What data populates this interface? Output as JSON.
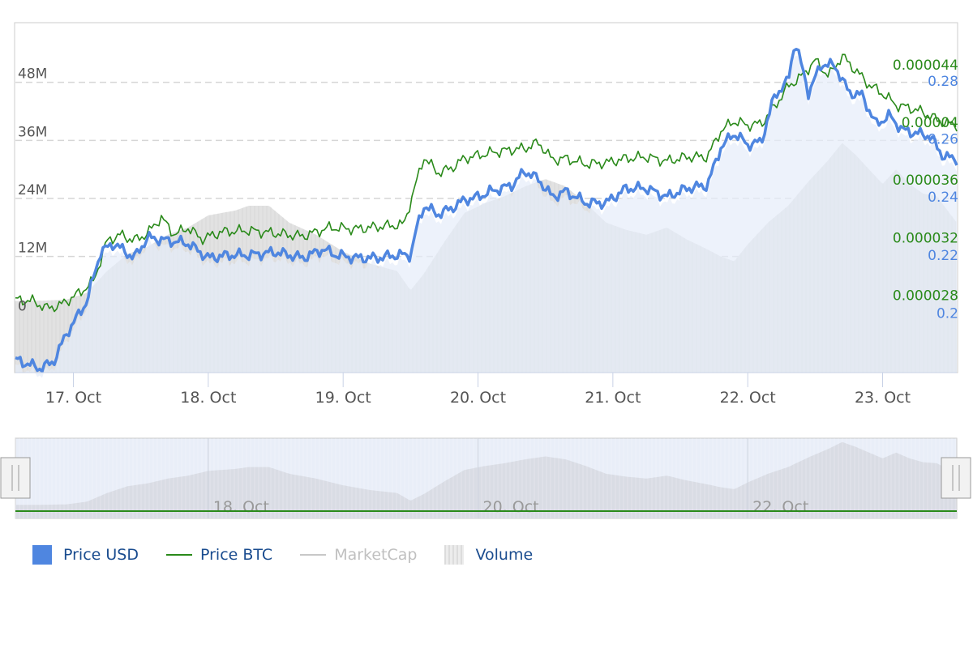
{
  "colors": {
    "price_usd": "#4f86e0",
    "price_btc": "#2a8a1a",
    "marketcap": "#c8c8c8",
    "volume": "#e2e2e2",
    "marketcap_area": "#e6edf9",
    "left_axis_text": "#555555",
    "usd_axis_text": "#4f86e0",
    "btc_axis_text": "#2a8a1a",
    "legend_text": "#1a4c8f",
    "legend_hidden_text": "#c0c0c0"
  },
  "chart_data": {
    "type": "line",
    "x_labels": [
      "17. Oct",
      "18. Oct",
      "19. Oct",
      "20. Oct",
      "21. Oct",
      "22. Oct",
      "23. Oct"
    ],
    "x_range": [
      16.57,
      23.55
    ],
    "axes": {
      "volume": {
        "ticks": [
          "0",
          "12M",
          "24M",
          "36M",
          "48M"
        ],
        "values": [
          0,
          12000000,
          24000000,
          36000000,
          48000000
        ],
        "range": [
          -12000000,
          60000000
        ]
      },
      "price_usd": {
        "ticks": [
          "0.2",
          "0.22",
          "0.24",
          "0.26",
          "0.28"
        ],
        "values": [
          0.2,
          0.22,
          0.24,
          0.26,
          0.28
        ],
        "range": [
          0.1795,
          0.2995
        ]
      },
      "price_btc": {
        "ticks": [
          "0.000028",
          "0.000032",
          "0.000036",
          "0.00004",
          "0.000044"
        ],
        "values": [
          2.8e-05,
          3.2e-05,
          3.6e-05,
          4e-05,
          4.4e-05
        ],
        "range": [
          2.264e-05,
          4.68e-05
        ]
      }
    },
    "grid": true,
    "legend_position": "bottom-left",
    "series": [
      {
        "name": "Price USD",
        "axis": "price_usd",
        "x": [
          16.57,
          16.75,
          16.85,
          16.95,
          17.1,
          17.2,
          17.3,
          17.45,
          17.55,
          17.7,
          17.85,
          18.0,
          18.15,
          18.3,
          18.5,
          18.7,
          18.85,
          18.95,
          19.1,
          19.25,
          19.4,
          19.5,
          19.55,
          19.6,
          19.7,
          19.8,
          19.9,
          20.0,
          20.1,
          20.25,
          20.35,
          20.45,
          20.55,
          20.65,
          20.8,
          20.95,
          21.1,
          21.25,
          21.4,
          21.55,
          21.7,
          21.8,
          21.9,
          22.0,
          22.1,
          22.2,
          22.3,
          22.35,
          22.45,
          22.55,
          22.65,
          22.75,
          22.85,
          22.95,
          23.05,
          23.15,
          23.25,
          23.35,
          23.45,
          23.55
        ],
        "values": [
          0.184,
          0.181,
          0.183,
          0.193,
          0.204,
          0.221,
          0.224,
          0.219,
          0.226,
          0.225,
          0.224,
          0.219,
          0.22,
          0.22,
          0.221,
          0.219,
          0.222,
          0.22,
          0.219,
          0.219,
          0.22,
          0.22,
          0.23,
          0.237,
          0.234,
          0.236,
          0.239,
          0.24,
          0.242,
          0.244,
          0.249,
          0.246,
          0.24,
          0.242,
          0.238,
          0.238,
          0.243,
          0.243,
          0.24,
          0.243,
          0.244,
          0.257,
          0.262,
          0.258,
          0.259,
          0.275,
          0.28,
          0.294,
          0.276,
          0.286,
          0.285,
          0.276,
          0.275,
          0.265,
          0.268,
          0.263,
          0.262,
          0.261,
          0.254,
          0.253
        ]
      },
      {
        "name": "Price BTC",
        "axis": "price_btc",
        "x": [
          16.57,
          16.7,
          16.8,
          16.9,
          17.05,
          17.15,
          17.25,
          17.35,
          17.45,
          17.55,
          17.65,
          17.75,
          17.85,
          17.95,
          18.1,
          18.3,
          18.5,
          18.7,
          18.9,
          19.1,
          19.3,
          19.45,
          19.5,
          19.6,
          19.7,
          19.8,
          19.9,
          20.0,
          20.1,
          20.25,
          20.35,
          20.45,
          20.55,
          20.65,
          20.8,
          20.95,
          21.1,
          21.25,
          21.4,
          21.55,
          21.7,
          21.8,
          21.9,
          22.0,
          22.1,
          22.2,
          22.3,
          22.4,
          22.5,
          22.6,
          22.7,
          22.8,
          22.9,
          23.0,
          23.1,
          23.2,
          23.3,
          23.4,
          23.45,
          23.55
        ],
        "values": [
          2.77e-05,
          2.76e-05,
          2.71e-05,
          2.73e-05,
          2.82e-05,
          2.9e-05,
          3.18e-05,
          3.22e-05,
          3.18e-05,
          3.23e-05,
          3.34e-05,
          3.22e-05,
          3.27e-05,
          3.19e-05,
          3.24e-05,
          3.25e-05,
          3.23e-05,
          3.21e-05,
          3.27e-05,
          3.26e-05,
          3.28e-05,
          3.29e-05,
          3.45e-05,
          3.76e-05,
          3.65e-05,
          3.68e-05,
          3.75e-05,
          3.77e-05,
          3.79e-05,
          3.81e-05,
          3.82e-05,
          3.86e-05,
          3.74e-05,
          3.75e-05,
          3.71e-05,
          3.72e-05,
          3.75e-05,
          3.76e-05,
          3.73e-05,
          3.76e-05,
          3.76e-05,
          3.94e-05,
          4.01e-05,
          3.98e-05,
          3.99e-05,
          4.11e-05,
          4.25e-05,
          4.32e-05,
          4.43e-05,
          4.32e-05,
          4.46e-05,
          4.36e-05,
          4.26e-05,
          4.2e-05,
          4.12e-05,
          4.1e-05,
          4.07e-05,
          4.02e-05,
          4e-05,
          3.98e-05
        ]
      },
      {
        "name": "MarketCap",
        "visible": false
      },
      {
        "name": "Volume",
        "axis": "volume",
        "x": [
          16.57,
          16.8,
          16.95,
          17.1,
          17.25,
          17.4,
          17.55,
          17.7,
          17.85,
          18.0,
          18.1,
          18.2,
          18.3,
          18.45,
          18.6,
          18.8,
          19.0,
          19.2,
          19.4,
          19.5,
          19.6,
          19.75,
          19.9,
          20.05,
          20.2,
          20.35,
          20.5,
          20.65,
          20.8,
          20.95,
          21.1,
          21.25,
          21.4,
          21.55,
          21.7,
          21.8,
          21.9,
          22.0,
          22.15,
          22.3,
          22.45,
          22.6,
          22.7,
          22.8,
          22.9,
          23.0,
          23.1,
          23.2,
          23.3,
          23.4,
          23.55
        ],
        "values": [
          2800000,
          2900000,
          3100000,
          4500000,
          9000000,
          12500000,
          14000000,
          16500000,
          18000000,
          20500000,
          21000000,
          21500000,
          22500000,
          22500000,
          19000000,
          16500000,
          13000000,
          10500000,
          9000000,
          5000000,
          8500000,
          15000000,
          21000000,
          23000000,
          24500000,
          26500000,
          28000000,
          26500000,
          23000000,
          19000000,
          17500000,
          16500000,
          18000000,
          15500000,
          13500000,
          12000000,
          11000000,
          14500000,
          19000000,
          22500000,
          27500000,
          32000000,
          35500000,
          33000000,
          30000000,
          27000000,
          30000000,
          27000000,
          25000000,
          24500000,
          19000000
        ]
      }
    ]
  },
  "navigator": {
    "labels": [
      "18. Oct",
      "20. Oct",
      "22. Oct"
    ]
  },
  "legend": {
    "items": [
      {
        "label": "Price USD",
        "symbol": "box",
        "visible": true
      },
      {
        "label": "Price BTC",
        "symbol": "line",
        "visible": true
      },
      {
        "label": "MarketCap",
        "symbol": "line",
        "visible": false
      },
      {
        "label": "Volume",
        "symbol": "volume",
        "visible": true
      }
    ]
  }
}
